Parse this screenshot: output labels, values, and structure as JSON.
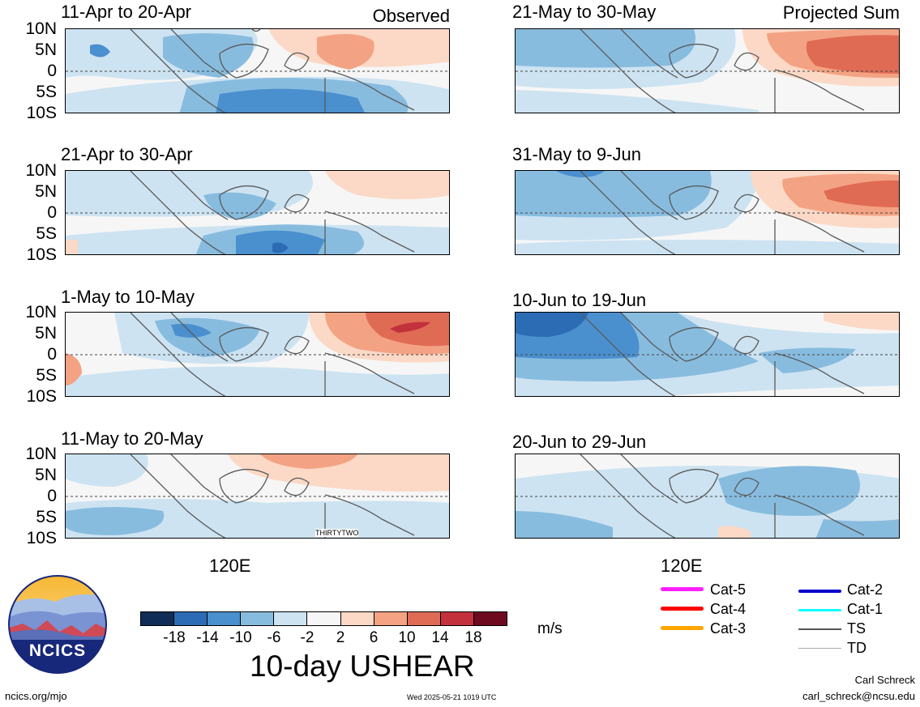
{
  "colors": {
    "c_m18": "#0f2d57",
    "c_m14": "#2b6cb5",
    "c_m10": "#4a8fce",
    "c_m6": "#88bcdf",
    "c_m2": "#cde3f2",
    "c_0": "#f6f6f6",
    "c_p2": "#fbd9c6",
    "c_p6": "#f3a383",
    "c_p10": "#e06b55",
    "c_p14": "#c3313d",
    "c_p18": "#6d0a20",
    "coast": "#5a5a5a"
  },
  "panels": [
    {
      "id": "p1",
      "title": "11-Apr to 20-Apr",
      "note": "Observed"
    },
    {
      "id": "p2",
      "title": "21-Apr to 30-Apr",
      "note": ""
    },
    {
      "id": "p3",
      "title": "1-May to 10-May",
      "note": ""
    },
    {
      "id": "p4",
      "title": "11-May to 20-May",
      "note": "",
      "storm": "THIRTYTWO"
    },
    {
      "id": "p5",
      "title": "21-May to 30-May",
      "note": "Projected Sum"
    },
    {
      "id": "p6",
      "title": "31-May to 9-Jun",
      "note": ""
    },
    {
      "id": "p7",
      "title": "10-Jun to 19-Jun",
      "note": ""
    },
    {
      "id": "p8",
      "title": "20-Jun to 29-Jun",
      "note": ""
    }
  ],
  "lat_labels": [
    "10N",
    "5N",
    "0",
    "5S",
    "10S"
  ],
  "lon_label": "120E",
  "colorbar": {
    "ticks": [
      "-18",
      "-14",
      "-10",
      "-6",
      "-2",
      "2",
      "6",
      "10",
      "14",
      "18"
    ],
    "units": "m/s",
    "title": "10-day USHEAR"
  },
  "track_legend": [
    {
      "label": "Cat-5",
      "color": "#ff1fff"
    },
    {
      "label": "Cat-4",
      "color": "#ff0000"
    },
    {
      "label": "Cat-3",
      "color": "#ffa500"
    },
    {
      "label": "Cat-2",
      "color": "#0000cc"
    },
    {
      "label": "Cat-1",
      "color": "#00ffff"
    },
    {
      "label": "TS",
      "color": "#555555"
    },
    {
      "label": "TD",
      "color": "#aaaaaa"
    }
  ],
  "logo_text": "NCICS",
  "footer": {
    "url": "ncics.org/mjo",
    "timestamp": "Wed 2025-05-21 1019 UTC",
    "author": "Carl Schreck",
    "email": "carl_schreck@ncsu.edu"
  }
}
